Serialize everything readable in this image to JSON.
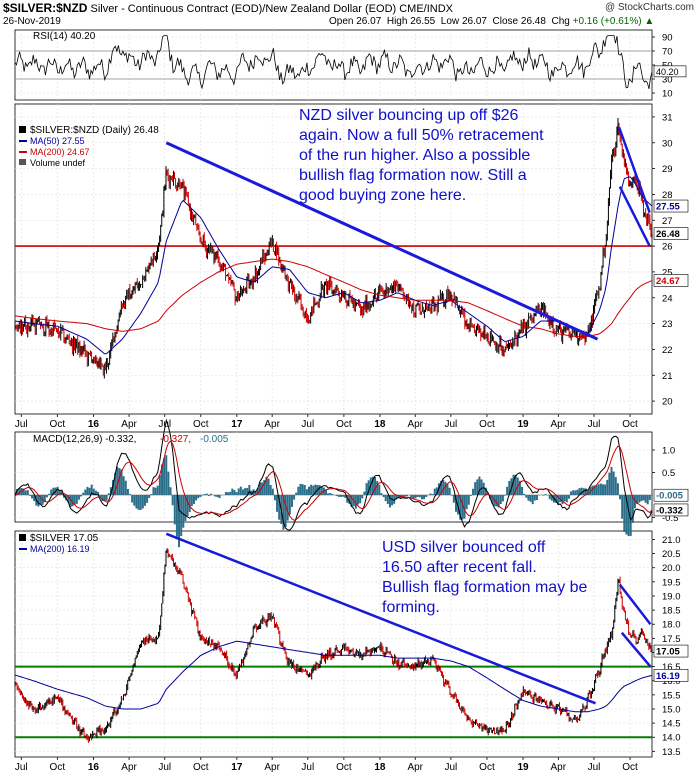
{
  "header": {
    "symbol": "$SILVER:$NZD",
    "description": "Silver - Continuous Contract (EOD)/New Zealand Dollar (EOD) CME/INDX",
    "watermark": "@ StockCharts.com",
    "date": "26-Nov-2019",
    "open_label": "Open",
    "open": "26.07",
    "high_label": "High",
    "high": "26.55",
    "low_label": "Low",
    "low": "26.07",
    "close_label": "Close",
    "close": "26.48",
    "chg_label": "Chg",
    "chg": "+0.16 (+0.61%)",
    "chg_arrow": "▲"
  },
  "colors": {
    "price": "#000000",
    "up": "#000000",
    "down": "#cc0000",
    "ma50": "#000099",
    "ma200": "#cc0000",
    "trend": "#1a1adb",
    "support_red": "#cc0000",
    "support_green": "#008000",
    "annotation": "#1010cc",
    "rsi_line": "#000000",
    "macd_line": "#000000",
    "signal_line": "#cc0000",
    "histogram": "#2a6e8a"
  },
  "x_axis": {
    "tick_labels": [
      "Jul",
      "Oct",
      "16",
      "Apr",
      "Jul",
      "Oct",
      "17",
      "Apr",
      "Jul",
      "Oct",
      "18",
      "Apr",
      "Jul",
      "Oct",
      "19",
      "Apr",
      "Jul",
      "Oct"
    ],
    "bold_labels": [
      "16",
      "17",
      "18",
      "19"
    ],
    "start": "2015-06-15",
    "end": "2019-11-26"
  },
  "rsi_panel": {
    "legend": "RSI(14) 40.20",
    "current": 40.2,
    "y_ticks": [
      "90",
      "70",
      "50",
      "30",
      "10"
    ],
    "current_label": "40.20",
    "ylim": [
      0,
      100
    ]
  },
  "nzd_panel": {
    "legend_title": "$SILVER:$NZD (Daily) 26.48",
    "legend_ma50": "MA(50) 27.55",
    "legend_ma200": "MA(200) 24.67",
    "legend_volume": "Volume undef",
    "y_ticks": [
      "31",
      "30",
      "29",
      "28",
      "27",
      "26",
      "25",
      "24",
      "23",
      "22",
      "21",
      "20"
    ],
    "price_label": "26.48",
    "ma50_label": "27.55",
    "ma200_label": "24.67",
    "ylim": [
      19.5,
      31.5
    ],
    "annotation": [
      "NZD silver bouncing up off $26",
      "again. Now a full 50% retracement",
      "of the run higher. Also a possible",
      "bullish flag formation now. Still a",
      "good buying zone here."
    ]
  },
  "macd_panel": {
    "legend_main": "MACD(12,26,9) -0.332,",
    "legend_signal": "-0.327,",
    "legend_hist": "-0.005",
    "y_ticks": [
      "1.0",
      "0.5",
      "-0.5"
    ],
    "signal_label": "-0.005",
    "macd_label": "-0.332",
    "ylim": [
      -0.6,
      1.4
    ]
  },
  "usd_panel": {
    "legend_title": "$SILVER 17.05",
    "legend_ma200": "MA(200) 16.19",
    "y_ticks": [
      "21.0",
      "20.5",
      "20.0",
      "19.5",
      "19.0",
      "18.5",
      "18.0",
      "17.5",
      "17.0",
      "16.5",
      "16.0",
      "15.5",
      "15.0",
      "14.5",
      "14.0",
      "13.5"
    ],
    "price_label": "17.05",
    "ma200_label": "16.19",
    "ylim": [
      13.3,
      21.3
    ],
    "annotation": [
      "USD silver bounced off",
      "16.50 after recent fall.",
      "Bullish flag formation may be",
      "forming."
    ]
  },
  "chart_data": [
    {
      "type": "line",
      "title": "RSI(14)",
      "ylim": [
        0,
        100
      ],
      "reference_lines": [
        70,
        30
      ],
      "last_value": 40.2
    },
    {
      "type": "line",
      "title": "$SILVER:$NZD (Daily)",
      "x": [
        "2015-06-15",
        "2015-08-01",
        "2015-10-01",
        "2015-12-15",
        "2016-02-01",
        "2016-03-15",
        "2016-05-01",
        "2016-06-15",
        "2016-07-05",
        "2016-08-15",
        "2016-10-01",
        "2016-11-15",
        "2017-01-01",
        "2017-02-15",
        "2017-04-01",
        "2017-05-15",
        "2017-07-01",
        "2017-08-15",
        "2017-10-01",
        "2017-11-15",
        "2018-01-01",
        "2018-02-15",
        "2018-04-01",
        "2018-05-15",
        "2018-07-01",
        "2018-08-15",
        "2018-10-01",
        "2018-11-15",
        "2019-01-01",
        "2019-02-15",
        "2019-04-01",
        "2019-05-15",
        "2019-06-15",
        "2019-07-15",
        "2019-08-01",
        "2019-08-15",
        "2019-09-01",
        "2019-09-15",
        "2019-10-01",
        "2019-10-15",
        "2019-11-01",
        "2019-11-26"
      ],
      "series": [
        {
          "name": "$SILVER:$NZD",
          "values": [
            22.8,
            23.0,
            22.7,
            21.8,
            21.2,
            23.8,
            24.6,
            26.0,
            28.8,
            28.3,
            26.2,
            25.5,
            24.0,
            24.8,
            26.2,
            24.5,
            23.2,
            24.5,
            24.1,
            23.5,
            24.2,
            24.5,
            23.5,
            23.6,
            24.2,
            22.8,
            22.6,
            21.9,
            22.8,
            23.6,
            22.7,
            22.6,
            22.5,
            24.5,
            26.4,
            29.3,
            30.6,
            29.4,
            28.3,
            28.8,
            27.6,
            26.48
          ]
        },
        {
          "name": "MA(50)",
          "values": [
            23.1,
            23.0,
            22.9,
            22.4,
            21.8,
            22.4,
            23.4,
            24.6,
            26.2,
            27.8,
            27.1,
            25.9,
            24.8,
            24.6,
            25.2,
            25.1,
            24.2,
            24.0,
            24.2,
            23.8,
            23.9,
            24.2,
            23.9,
            23.7,
            23.9,
            23.4,
            22.9,
            22.3,
            22.5,
            23.1,
            23.1,
            22.8,
            22.6,
            23.5,
            24.4,
            26.0,
            27.6,
            28.6,
            28.7,
            28.4,
            27.9,
            27.55
          ]
        },
        {
          "name": "MA(200)",
          "values": [
            23.3,
            23.2,
            23.1,
            23.0,
            22.8,
            22.7,
            22.8,
            23.1,
            23.5,
            24.1,
            24.6,
            25.0,
            25.3,
            25.4,
            25.5,
            25.4,
            25.2,
            24.9,
            24.6,
            24.3,
            24.1,
            24.0,
            23.9,
            23.9,
            23.9,
            23.8,
            23.5,
            23.2,
            22.9,
            22.8,
            22.6,
            22.5,
            22.5,
            22.6,
            22.8,
            23.0,
            23.4,
            23.7,
            24.0,
            24.3,
            24.5,
            24.67
          ]
        }
      ],
      "support_level": 26.0,
      "trendline": {
        "from": [
          "2016-07-05",
          30.0
        ],
        "to": [
          "2019-07-10",
          22.4
        ]
      },
      "flag_upper": {
        "from": [
          "2019-09-03",
          30.6
        ],
        "to": [
          "2019-11-20",
          27.3
        ]
      },
      "flag_lower": {
        "from": [
          "2019-09-05",
          28.3
        ],
        "to": [
          "2019-11-20",
          26.0
        ]
      },
      "ylim": [
        19.5,
        31.5
      ]
    },
    {
      "type": "line",
      "title": "MACD(12,26,9)",
      "series": [
        {
          "name": "MACD",
          "last": -0.332
        },
        {
          "name": "Signal",
          "last": -0.327
        },
        {
          "name": "Histogram",
          "last": -0.005
        }
      ],
      "ylim": [
        -0.6,
        1.4
      ]
    },
    {
      "type": "line",
      "title": "$SILVER",
      "x": [
        "2015-06-15",
        "2015-08-01",
        "2015-10-01",
        "2015-12-15",
        "2016-02-01",
        "2016-03-15",
        "2016-05-01",
        "2016-06-15",
        "2016-07-05",
        "2016-08-15",
        "2016-10-01",
        "2016-11-15",
        "2017-01-01",
        "2017-02-15",
        "2017-04-01",
        "2017-05-15",
        "2017-07-01",
        "2017-08-15",
        "2017-10-01",
        "2017-11-15",
        "2018-01-01",
        "2018-02-15",
        "2018-04-01",
        "2018-05-15",
        "2018-07-01",
        "2018-08-15",
        "2018-10-01",
        "2018-11-15",
        "2019-01-01",
        "2019-02-15",
        "2019-04-01",
        "2019-05-15",
        "2019-06-15",
        "2019-07-15",
        "2019-08-01",
        "2019-08-15",
        "2019-09-01",
        "2019-09-15",
        "2019-10-01",
        "2019-10-15",
        "2019-11-01",
        "2019-11-26"
      ],
      "series": [
        {
          "name": "$SILVER",
          "values": [
            15.8,
            14.9,
            15.4,
            13.9,
            14.3,
            15.3,
            17.4,
            17.5,
            20.6,
            19.6,
            17.5,
            17.2,
            16.2,
            17.9,
            18.3,
            16.6,
            16.2,
            16.9,
            17.1,
            16.9,
            17.2,
            16.6,
            16.5,
            16.8,
            15.6,
            14.6,
            14.3,
            14.2,
            15.6,
            15.3,
            15.0,
            14.6,
            15.3,
            16.4,
            17.2,
            17.6,
            19.6,
            18.4,
            17.6,
            17.5,
            17.7,
            17.05
          ]
        },
        {
          "name": "MA(200)",
          "values": [
            16.2,
            16.0,
            15.7,
            15.4,
            15.1,
            15.0,
            15.0,
            15.2,
            15.7,
            16.3,
            16.9,
            17.2,
            17.4,
            17.3,
            17.2,
            17.1,
            17.0,
            16.9,
            16.9,
            16.9,
            16.9,
            16.8,
            16.8,
            16.8,
            16.7,
            16.5,
            16.1,
            15.7,
            15.3,
            15.1,
            15.0,
            14.9,
            14.9,
            15.0,
            15.1,
            15.3,
            15.6,
            15.8,
            15.9,
            16.0,
            16.1,
            16.19
          ]
        }
      ],
      "support_levels": [
        16.5,
        14.0
      ],
      "trendline": {
        "from": [
          "2016-07-05",
          21.2
        ],
        "to": [
          "2019-07-05",
          15.2
        ]
      },
      "flag_upper": {
        "from": [
          "2019-09-05",
          19.4
        ],
        "to": [
          "2019-11-22",
          18.0
        ]
      },
      "flag_lower": {
        "from": [
          "2019-09-10",
          17.7
        ],
        "to": [
          "2019-11-22",
          16.5
        ]
      },
      "ylim": [
        13.3,
        21.3
      ]
    }
  ]
}
